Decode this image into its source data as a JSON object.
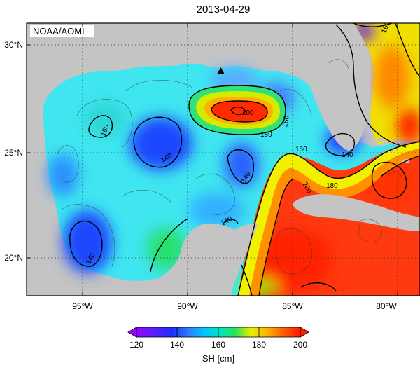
{
  "map": {
    "title": "2013-04-29",
    "credit": "NOAA/AOML",
    "lon_labels": [
      "95°W",
      "90°W",
      "85°W",
      "80°W"
    ],
    "lat_labels": [
      "30°N",
      "25°N",
      "20°N"
    ],
    "contour_labels": [
      "160",
      "140",
      "140",
      "140",
      "140",
      "200",
      "180",
      "160",
      "180",
      "200",
      "140",
      "160",
      "160"
    ],
    "marker": "buoy-triangle",
    "colors": {
      "land": "#c4c4c4",
      "water_bg": "#3fe6ef",
      "frame": "#000000"
    }
  },
  "colorbar": {
    "label": "SH [cm]",
    "ticks": [
      "120",
      "140",
      "160",
      "180",
      "200"
    ],
    "colors": [
      "#9b00ff",
      "#2040ff",
      "#00c8ff",
      "#00e070",
      "#f0f000",
      "#ff9000",
      "#ff2000"
    ]
  }
}
